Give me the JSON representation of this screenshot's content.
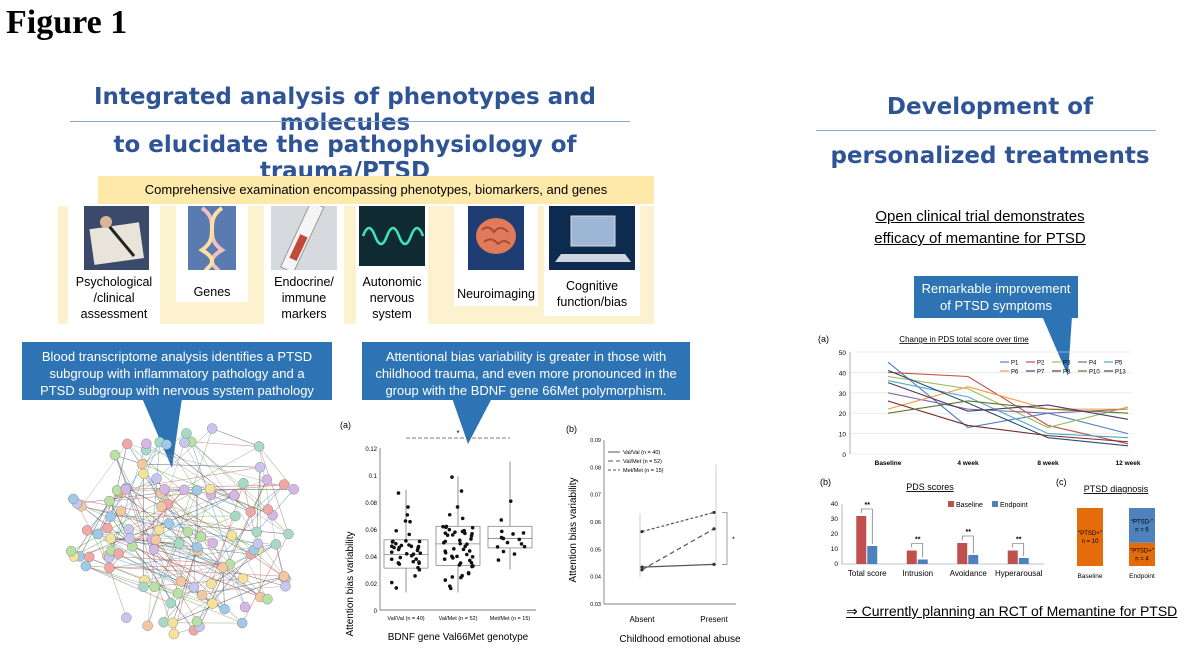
{
  "figure_title": "Figure 1",
  "left_heading": {
    "line1": "Integrated analysis of phenotypes and molecules",
    "line2": "to elucidate the pathophysiology of trauma/PTSD"
  },
  "right_heading": {
    "line1": "Development of",
    "line2": "personalized treatments"
  },
  "banner": "Comprehensive examination encompassing phenotypes, biomarkers, and genes",
  "cards": [
    {
      "line1": "Psychological",
      "line2": "/clinical",
      "line3": "assessment",
      "icon": "writing-icon"
    },
    {
      "line1": "Genes",
      "line2": "",
      "line3": "",
      "icon": "dna-icon"
    },
    {
      "line1": "Endocrine/",
      "line2": "immune",
      "line3": "markers",
      "icon": "test-tube-icon"
    },
    {
      "line1": "Autonomic",
      "line2": "nervous",
      "line3": "system",
      "icon": "waveform-icon"
    },
    {
      "line1": "Neuroimaging",
      "line2": "",
      "line3": "",
      "icon": "brain-icon"
    },
    {
      "line1": "Cognitive",
      "line2": "function/bias",
      "line3": "",
      "icon": "laptop-icon"
    }
  ],
  "callouts": {
    "transcriptome": {
      "l1": "Blood transcriptome analysis identifies a PTSD",
      "l2": "subgroup with inflammatory pathology and a",
      "l3": "PTSD subgroup with nervous system pathology"
    },
    "attention": {
      "l1": "Attentional bias variability is greater in those with",
      "l2": "childhood trauma, and even more pronounced in the",
      "l3": "group with the BDNF gene 66Met polymorphism."
    },
    "improvement": {
      "l1": "Remarkable improvement",
      "l2": "of PTSD symptoms"
    }
  },
  "trial": {
    "line1": "Open clinical trial demonstrates",
    "line2": "efficacy of memantine for PTSD"
  },
  "footer_note": "⇒ Currently planning an RCT of Memantine for PTSD",
  "colors": {
    "heading": "#2f5496",
    "callout": "#2e74b5",
    "baseline": "#c0504d",
    "endpoint": "#4f81bd",
    "ptsd_orange": "#e46c0a",
    "ptsd_blue": "#4f81bd"
  },
  "chart_data": [
    {
      "id": "boxplot_a",
      "type": "box",
      "panel_label": "(a)",
      "ylabel": "Attention bias variability",
      "xlabel": "BDNF gene Val66Met genotype",
      "ylim": [
        0,
        0.12
      ],
      "yticks": [
        "0",
        "0.02",
        "0.04",
        "0.06",
        "0.08",
        "0.1",
        "0.12"
      ],
      "categories": [
        "Val/Val (n = 40)",
        "Val/Met (n = 52)",
        "Met/Met (n = 15)"
      ],
      "boxes": [
        {
          "q1": 0.031,
          "median": 0.041,
          "q3": 0.052,
          "min": 0.013,
          "max": 0.089
        },
        {
          "q1": 0.033,
          "median": 0.049,
          "q3": 0.062,
          "min": 0.013,
          "max": 0.099
        },
        {
          "q1": 0.046,
          "median": 0.053,
          "q3": 0.062,
          "min": 0.03,
          "max": 0.11
        }
      ],
      "significance": "*"
    },
    {
      "id": "line_b",
      "type": "line",
      "panel_label": "(b)",
      "ylabel": "Attention bias variability",
      "xlabel": "Childhood emotional abuse",
      "ylim": [
        0.03,
        0.09
      ],
      "yticks": [
        "0.03",
        "0.04",
        "0.05",
        "0.06",
        "0.07",
        "0.08",
        "0.09"
      ],
      "categories": [
        "Absent",
        "Present"
      ],
      "series": [
        {
          "name": "Val/Val (n = 40)",
          "values": [
            0.0435,
            0.0445
          ]
        },
        {
          "name": "Val/Met (n = 52)",
          "values": [
            0.0425,
            0.0575
          ]
        },
        {
          "name": "Met/Met (n = 15)",
          "values": [
            0.0565,
            0.0635
          ]
        }
      ],
      "significance": "*"
    },
    {
      "id": "pds_over_time",
      "type": "line",
      "panel_label": "(a)",
      "title": "Change in PDS total score over time",
      "categories": [
        "Baseline",
        "4 week",
        "8 week",
        "12 week"
      ],
      "ylim": [
        0,
        50
      ],
      "yticks": [
        "0",
        "10",
        "20",
        "30",
        "40",
        "50"
      ],
      "series": [
        {
          "name": "P1",
          "values": [
            45,
            13,
            20,
            10
          ]
        },
        {
          "name": "P2",
          "values": [
            40,
            38,
            14,
            5
          ]
        },
        {
          "name": "P3",
          "values": [
            38,
            32,
            13,
            23
          ]
        },
        {
          "name": "P4",
          "values": [
            30,
            22,
            20,
            22
          ]
        },
        {
          "name": "P5",
          "values": [
            36,
            28,
            10,
            8
          ]
        },
        {
          "name": "P6",
          "values": [
            22,
            33,
            22,
            22
          ]
        },
        {
          "name": "P7",
          "values": [
            41,
            25,
            8,
            4
          ]
        },
        {
          "name": "P8",
          "values": [
            26,
            14,
            9,
            6
          ]
        },
        {
          "name": "P10",
          "values": [
            20,
            26,
            22,
            20
          ]
        },
        {
          "name": "P13",
          "values": [
            35,
            21,
            24,
            17
          ]
        }
      ]
    },
    {
      "id": "pds_scores",
      "type": "bar",
      "panel_label": "(b)",
      "title": "PDS scores",
      "categories": [
        "Total score",
        "Intrusion",
        "Avoidance",
        "Hyperarousal"
      ],
      "ylim": [
        0,
        40
      ],
      "yticks": [
        "0",
        "10",
        "20",
        "30",
        "40"
      ],
      "series": [
        {
          "name": "Baseline",
          "values": [
            32,
            9,
            14,
            9
          ]
        },
        {
          "name": "Endpoint",
          "values": [
            12,
            3,
            6,
            4
          ]
        }
      ],
      "significance": [
        "**",
        "**",
        "**",
        "**"
      ]
    },
    {
      "id": "ptsd_diagnosis",
      "type": "bar",
      "panel_label": "(c)",
      "title": "PTSD diagnosis",
      "categories": [
        "Baseline",
        "Endpoint"
      ],
      "stacks": [
        [
          {
            "label": "“PTSD+”",
            "n": "n = 10",
            "value": 10
          }
        ],
        [
          {
            "label": "“PTSD+”",
            "n": "n = 4",
            "value": 4
          },
          {
            "label": "“PTSD-”",
            "n": "n = 6",
            "value": 6
          }
        ]
      ]
    }
  ]
}
